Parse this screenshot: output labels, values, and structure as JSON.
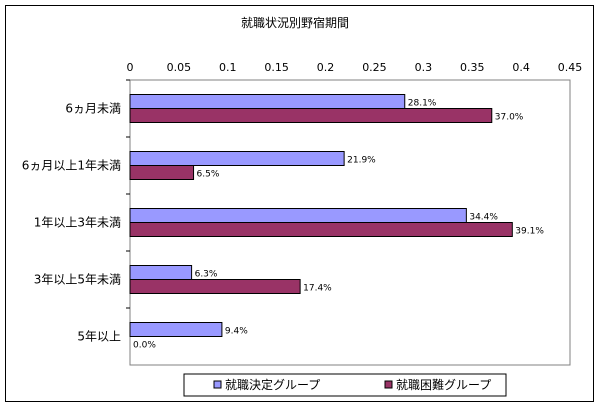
{
  "chart_data": {
    "type": "bar",
    "orientation": "horizontal",
    "title": "就職状況別野宿期間",
    "x_ticks": [
      "0",
      "0.05",
      "0.1",
      "0.15",
      "0.2",
      "0.25",
      "0.3",
      "0.35",
      "0.4",
      "0.45"
    ],
    "xlim": [
      0,
      0.45
    ],
    "grid": false,
    "legend_position": "bottom",
    "categories": [
      "6ヵ月未満",
      "6ヵ月以上1年未満",
      "1年以上3年未満",
      "3年以上5年未満",
      "5年以上"
    ],
    "series": [
      {
        "name": "就職決定グループ",
        "color": "#9999FF",
        "values": [
          0.281,
          0.219,
          0.344,
          0.063,
          0.094
        ],
        "labels": [
          "28.1%",
          "21.9%",
          "34.4%",
          "6.3%",
          "9.4%"
        ]
      },
      {
        "name": "就職困難グループ",
        "color": "#993366",
        "values": [
          0.37,
          0.065,
          0.391,
          0.174,
          0.0
        ],
        "labels": [
          "37.0%",
          "6.5%",
          "39.1%",
          "17.4%",
          "0.0%"
        ]
      }
    ]
  }
}
